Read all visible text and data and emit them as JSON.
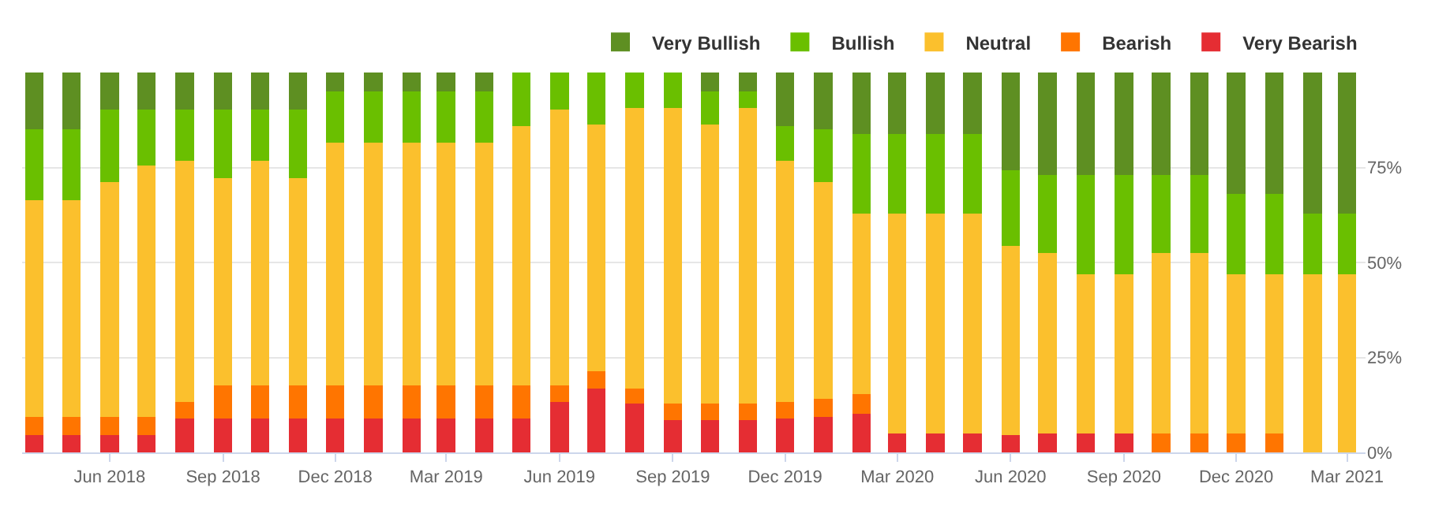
{
  "chart_data": {
    "type": "bar",
    "stacked": true,
    "x": [
      "2018-04",
      "2018-05",
      "2018-06",
      "2018-07",
      "2018-08",
      "2018-09",
      "2018-10",
      "2018-11",
      "2018-12",
      "2019-01",
      "2019-02",
      "2019-03",
      "2019-04",
      "2019-05",
      "2019-06",
      "2019-07",
      "2019-08",
      "2019-09",
      "2019-10",
      "2019-11",
      "2019-12",
      "2020-01",
      "2020-02",
      "2020-03",
      "2020-04",
      "2020-05",
      "2020-06",
      "2020-07",
      "2020-08",
      "2020-09",
      "2020-10",
      "2020-11",
      "2020-12",
      "2021-01",
      "2021-02",
      "2021-03"
    ],
    "series": [
      {
        "name": "Very Bearish",
        "color": "#e52d33",
        "values": [
          4.5,
          4.5,
          4.5,
          4.5,
          8.9,
          8.9,
          8.9,
          8.9,
          8.9,
          8.9,
          8.9,
          8.9,
          8.9,
          8.9,
          13.3,
          16.9,
          12.9,
          8.5,
          8.5,
          8.5,
          8.9,
          9.3,
          10.1,
          4.9,
          4.9,
          4.9,
          4.5,
          4.9,
          4.9,
          4.9,
          0,
          0,
          0,
          0,
          0,
          0
        ]
      },
      {
        "name": "Bearish",
        "color": "#ff7500",
        "values": [
          4.8,
          4.8,
          4.8,
          4.8,
          4.4,
          8.8,
          8.8,
          8.8,
          8.8,
          8.8,
          8.8,
          8.8,
          8.8,
          8.8,
          4.4,
          4.4,
          4.0,
          4.4,
          4.4,
          4.4,
          4.4,
          4.8,
          5.2,
          0,
          0,
          0,
          0,
          0,
          0,
          0,
          4.9,
          4.9,
          4.9,
          4.9,
          0,
          0
        ]
      },
      {
        "name": "Neutral",
        "color": "#fbc02d",
        "values": [
          57.1,
          57.1,
          61.8,
          66.2,
          63.4,
          54.6,
          59.0,
          54.6,
          63.8,
          63.8,
          63.8,
          63.8,
          63.8,
          68.2,
          72.6,
          65.0,
          73.8,
          77.8,
          73.4,
          77.8,
          63.4,
          57.0,
          47.5,
          57.9,
          57.9,
          57.9,
          49.9,
          47.5,
          41.9,
          41.9,
          47.5,
          47.5,
          41.9,
          41.9,
          46.8,
          46.8
        ]
      },
      {
        "name": "Bullish",
        "color": "#6abf00",
        "values": [
          18.7,
          18.7,
          19.2,
          14.8,
          13.6,
          18.0,
          13.6,
          18.0,
          13.6,
          13.6,
          13.6,
          13.6,
          13.6,
          14.1,
          9.7,
          13.7,
          9.3,
          9.3,
          8.8,
          4.4,
          9.2,
          14.0,
          21.1,
          21.1,
          21.1,
          21.1,
          19.9,
          20.7,
          26.3,
          26.3,
          20.7,
          20.7,
          21.2,
          21.2,
          16.0,
          16.0
        ]
      },
      {
        "name": "Very Bullish",
        "color": "#5e8f22",
        "values": [
          14.9,
          14.9,
          9.7,
          9.7,
          9.7,
          9.7,
          9.7,
          9.7,
          4.9,
          4.9,
          4.9,
          4.9,
          4.9,
          0,
          0,
          0,
          0,
          0,
          4.9,
          4.9,
          14.1,
          14.9,
          16.1,
          16.1,
          16.1,
          16.1,
          25.7,
          26.9,
          26.9,
          26.9,
          26.9,
          26.9,
          32.0,
          32.0,
          37.2,
          37.2
        ]
      }
    ],
    "xlim": [
      "2018-03-22",
      "2021-03-16"
    ],
    "xticks": [
      {
        "value": "2018-06",
        "label": "Jun 2018"
      },
      {
        "value": "2018-09",
        "label": "Sep 2018"
      },
      {
        "value": "2018-12",
        "label": "Dec 2018"
      },
      {
        "value": "2019-03",
        "label": "Mar 2019"
      },
      {
        "value": "2019-06",
        "label": "Jun 2019"
      },
      {
        "value": "2019-09",
        "label": "Sep 2019"
      },
      {
        "value": "2019-12",
        "label": "Dec 2019"
      },
      {
        "value": "2020-03",
        "label": "Mar 2020"
      },
      {
        "value": "2020-06",
        "label": "Jun 2020"
      },
      {
        "value": "2020-09",
        "label": "Sep 2020"
      },
      {
        "value": "2020-12",
        "label": "Dec 2020"
      },
      {
        "value": "2021-03",
        "label": "Mar 2021"
      }
    ],
    "ylim": [
      0,
      100
    ],
    "yticks": [
      {
        "value": 0,
        "label": "0%"
      },
      {
        "value": 25,
        "label": "25%"
      },
      {
        "value": 50,
        "label": "50%"
      },
      {
        "value": 75,
        "label": "75%"
      }
    ],
    "grid": "y",
    "legend": "top right"
  }
}
